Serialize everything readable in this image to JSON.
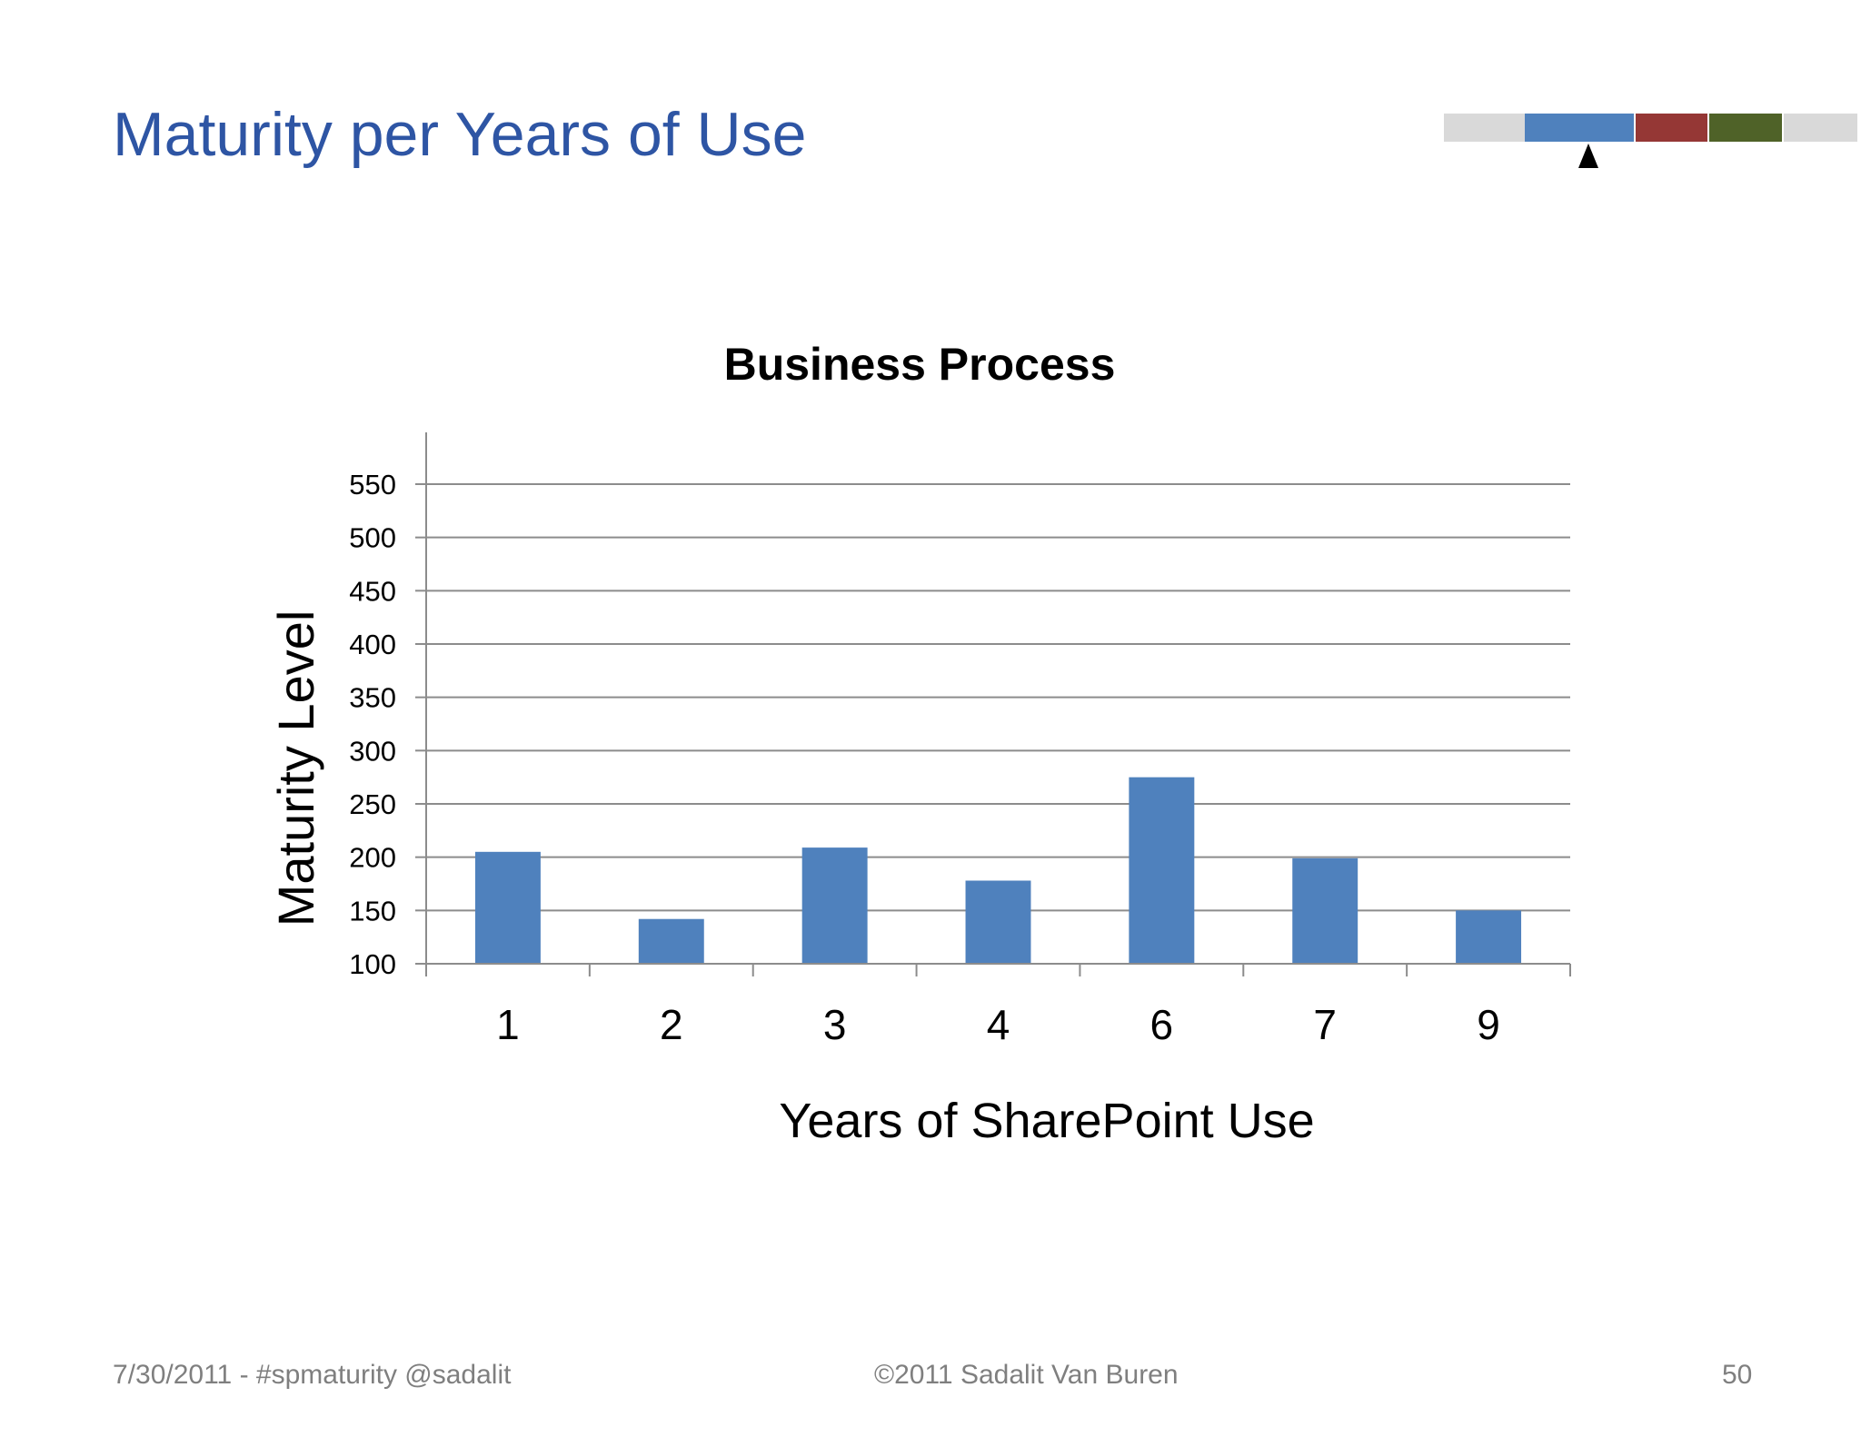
{
  "slide": {
    "title": "Maturity per Years of Use"
  },
  "progress_strip": {
    "segments": [
      {
        "name": "gray-left",
        "color": "#D9D9D9"
      },
      {
        "name": "blue",
        "color": "#4F81BD"
      },
      {
        "name": "red",
        "color": "#953735"
      },
      {
        "name": "green",
        "color": "#4F6228"
      },
      {
        "name": "gray-right",
        "color": "#D9D9D9"
      }
    ],
    "marker_icon": "triangle-up-icon",
    "current_segment": "blue"
  },
  "chart_data": {
    "type": "bar",
    "title": "Business Process",
    "xlabel": "Years of SharePoint Use",
    "ylabel": "Maturity Level",
    "categories": [
      "1",
      "2",
      "3",
      "4",
      "6",
      "7",
      "9"
    ],
    "values": [
      205,
      142,
      209,
      178,
      275,
      199,
      150
    ],
    "ylim": [
      100,
      550
    ],
    "yticks": [
      "100",
      "150",
      "200",
      "250",
      "300",
      "350",
      "400",
      "450",
      "500",
      "550"
    ],
    "grid": true,
    "legend": "none",
    "bar_color": "#4F81BD"
  },
  "footer": {
    "left": "7/30/2011 - #spmaturity @sadalit",
    "center": "©2011 Sadalit Van Buren",
    "page_number": "50"
  }
}
